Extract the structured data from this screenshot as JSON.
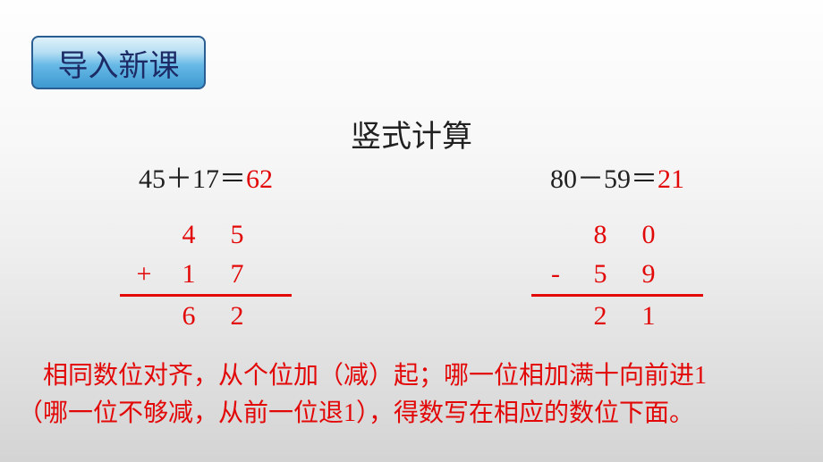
{
  "badge": "导入新课",
  "title": "竖式计算",
  "left": {
    "lhs": "45＋17＝",
    "ans": "62",
    "op": "+",
    "r1a": "4",
    "r1b": "5",
    "r2a": "1",
    "r2b": "7",
    "r3a": "6",
    "r3b": "2"
  },
  "right": {
    "lhs": "80－59＝",
    "ans": "21",
    "op": "-",
    "r1a": "8",
    "r1b": "0",
    "r2a": "5",
    "r2b": "9",
    "r3a": "2",
    "r3b": "1"
  },
  "note_p1": "　相同数位对齐，从个位加（减）起；哪一位相加满十向前进",
  "note_n1": "1",
  "note_p2": "（哪一位不够减，从前一位退",
  "note_n2": "1",
  "note_p3": "），得数写在相应的数位下面。",
  "style": {
    "accent_red": "#e30808",
    "text_dark": "#212121",
    "badge_border": "#2a5d92",
    "badge_text": "#1c2a65",
    "title_fontsize": 34,
    "body_fontsize": 30,
    "note_fontsize": 28
  }
}
